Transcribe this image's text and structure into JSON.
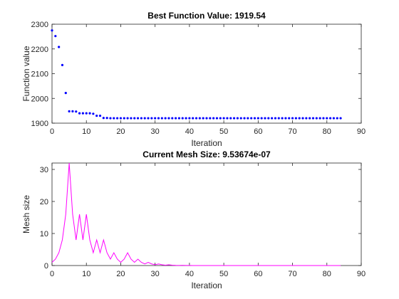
{
  "chart_data": [
    {
      "type": "scatter",
      "title": "Best Function Value: 1919.54",
      "xlabel": "Iteration",
      "ylabel": "Function value",
      "xlim": [
        0,
        90
      ],
      "ylim": [
        1900,
        2300
      ],
      "xticks": [
        0,
        10,
        20,
        30,
        40,
        50,
        60,
        70,
        80,
        90
      ],
      "yticks": [
        1900,
        2000,
        2100,
        2200,
        2300
      ],
      "grid": false,
      "marker_color": "#0000ff",
      "series": [
        {
          "x": [
            0,
            1,
            2,
            3,
            4,
            5,
            6,
            7,
            8,
            9,
            10,
            11,
            12,
            13,
            14,
            15,
            16,
            17,
            18,
            19,
            20,
            21,
            22,
            23,
            24,
            25,
            26,
            27,
            28,
            29,
            30,
            31,
            32,
            33,
            34,
            35,
            36,
            37,
            38,
            39,
            40,
            41,
            42,
            43,
            44,
            45,
            46,
            47,
            48,
            49,
            50,
            51,
            52,
            53,
            54,
            55,
            56,
            57,
            58,
            59,
            60,
            61,
            62,
            63,
            64,
            65,
            66,
            67,
            68,
            69,
            70,
            71,
            72,
            73,
            74,
            75,
            76,
            77,
            78,
            79,
            80,
            81,
            82,
            83,
            84
          ],
          "y": [
            2275,
            2252,
            2208,
            2135,
            2022,
            1948,
            1948,
            1947,
            1940,
            1940,
            1940,
            1940,
            1938,
            1930,
            1930,
            1921,
            1921,
            1920,
            1920,
            1920,
            1920,
            1920,
            1920,
            1920,
            1920,
            1920,
            1920,
            1920,
            1920,
            1920,
            1920,
            1920,
            1920,
            1920,
            1920,
            1920,
            1920,
            1920,
            1920,
            1920,
            1920,
            1920,
            1920,
            1920,
            1920,
            1920,
            1920,
            1920,
            1920,
            1920,
            1920,
            1920,
            1920,
            1920,
            1920,
            1920,
            1920,
            1920,
            1920,
            1920,
            1920,
            1920,
            1920,
            1920,
            1920,
            1920,
            1920,
            1920,
            1920,
            1920,
            1920,
            1920,
            1920,
            1920,
            1920,
            1920,
            1920,
            1920,
            1920,
            1920,
            1920,
            1920,
            1920,
            1920,
            1920
          ]
        }
      ]
    },
    {
      "type": "line",
      "title": "Current Mesh Size: 9.53674e-07",
      "xlabel": "Iteration",
      "ylabel": "Mesh size",
      "xlim": [
        0,
        90
      ],
      "ylim": [
        0,
        32
      ],
      "xticks": [
        0,
        10,
        20,
        30,
        40,
        50,
        60,
        70,
        80,
        90
      ],
      "yticks": [
        0,
        10,
        20,
        30
      ],
      "grid": false,
      "line_color": "#ff00ff",
      "series": [
        {
          "x": [
            0,
            1,
            2,
            3,
            4,
            5,
            6,
            7,
            8,
            9,
            10,
            11,
            12,
            13,
            14,
            15,
            16,
            17,
            18,
            19,
            20,
            21,
            22,
            23,
            24,
            25,
            26,
            27,
            28,
            29,
            30,
            31,
            32,
            33,
            34,
            35,
            36,
            37,
            38,
            39,
            40,
            41,
            42,
            43,
            44,
            45,
            46,
            47,
            48,
            49,
            50,
            51,
            52,
            53,
            54,
            55,
            56,
            57,
            58,
            59,
            60,
            61,
            62,
            63,
            64,
            65,
            66,
            67,
            68,
            69,
            70,
            71,
            72,
            73,
            74,
            75,
            76,
            77,
            78,
            79,
            80,
            81,
            82,
            83,
            84
          ],
          "y": [
            1,
            2,
            4,
            8,
            16,
            32,
            16,
            8,
            16,
            8,
            16,
            8,
            4,
            8,
            4,
            8,
            4,
            2,
            4,
            2,
            1,
            2,
            4,
            2,
            1,
            2,
            1,
            0.5,
            1,
            0.5,
            0.25,
            0.5,
            0.25,
            0.125,
            0.25,
            0.125,
            0.0625,
            0.03125,
            0.0625,
            0.03125,
            0.015625,
            0.0078125,
            0.0039,
            0.002,
            0.001,
            0.0005,
            0.00025,
            0.000122,
            6.1e-05,
            3e-05,
            1.5e-05,
            7.6e-06,
            3.8e-06,
            1.9e-06,
            9.5e-07,
            9.5e-07,
            9.5e-07,
            9.5e-07,
            9.5e-07,
            9.5e-07,
            9.5e-07,
            9.5e-07,
            9.5e-07,
            9.5e-07,
            9.5e-07,
            9.5e-07,
            9.5e-07,
            9.5e-07,
            9.5e-07,
            9.5e-07,
            9.5e-07,
            9.5e-07,
            9.5e-07,
            9.5e-07,
            9.5e-07,
            9.5e-07,
            9.5e-07,
            9.5e-07,
            9.5e-07,
            9.5e-07,
            9.5e-07,
            9.5e-07,
            9.5e-07,
            9.5e-07,
            9.5e-07
          ]
        }
      ]
    }
  ]
}
